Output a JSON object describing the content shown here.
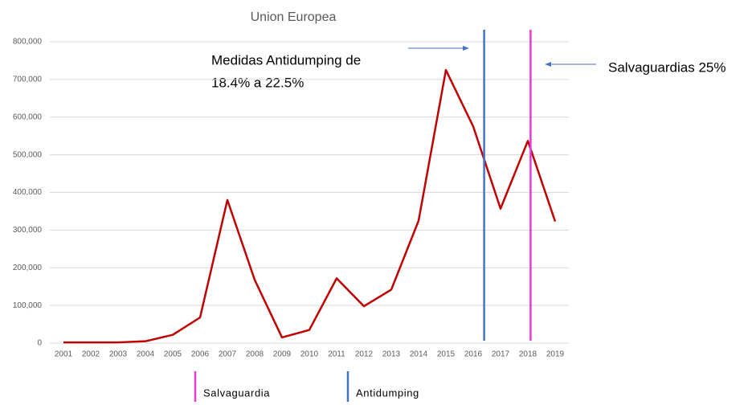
{
  "chart_data": {
    "type": "line",
    "title": "Union Europea",
    "categories": [
      "2001",
      "2002",
      "2003",
      "2004",
      "2005",
      "2006",
      "2007",
      "2008",
      "2009",
      "2010",
      "2011",
      "2012",
      "2013",
      "2014",
      "2015",
      "2016",
      "2017",
      "2018",
      "2019"
    ],
    "series": [
      {
        "name": "Union Europea",
        "color": "#c00000",
        "values": [
          2000,
          2000,
          2000,
          5000,
          22000,
          68000,
          380000,
          168000,
          15000,
          35000,
          172000,
          98000,
          142000,
          325000,
          725000,
          575000,
          357000,
          537000,
          323000
        ]
      }
    ],
    "ylim": [
      0,
      800000
    ],
    "yticks": [
      0,
      {
        "value": 100000,
        "label": "100,000"
      },
      {
        "value": 200000,
        "label": "200,000"
      },
      {
        "value": 300000,
        "label": "300,000"
      },
      {
        "value": 400000,
        "label": "400,000"
      },
      {
        "value": 500000,
        "label": "500,000"
      },
      {
        "value": 600000,
        "label": "600,000"
      },
      {
        "value": 700000,
        "label": "700,000"
      },
      {
        "value": 800000,
        "label": "800,000"
      }
    ],
    "grid": true,
    "vlines": [
      {
        "name": "Salvaguardia",
        "color": "#e83ad6",
        "x": 2018.1
      },
      {
        "name": "Antidumping",
        "color": "#4472c4",
        "x": 2016.4
      }
    ],
    "annotations": [
      "Medidas Antidumping de",
      "18.4% a 22.5%",
      "Salvaguardias 25%"
    ],
    "legend": "bottom"
  }
}
